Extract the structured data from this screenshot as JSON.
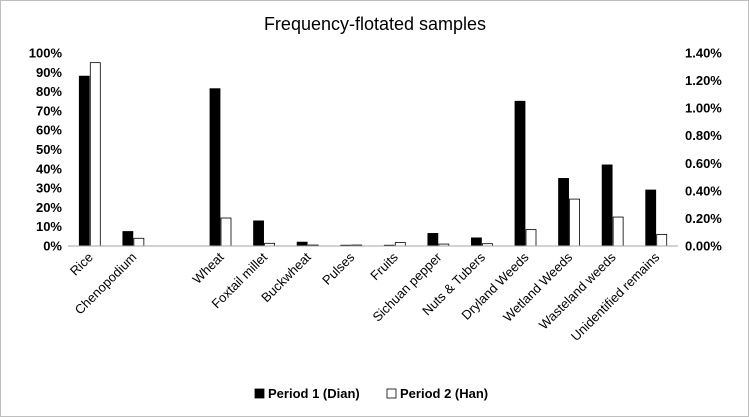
{
  "chart_data": {
    "type": "bar",
    "title": "Frequency-flotated samples",
    "xlabel": "",
    "ylabel": "",
    "categories": [
      "Rice",
      "Chenopodium",
      "",
      "Wheat",
      "Foxtail millet",
      "Buckwheat",
      "Pulses",
      "Fruits",
      "Sichuan pepper",
      "Nuts & Tubers",
      "Dryland Weeds",
      "Wetland Weeds",
      "Wasteland weeds",
      "Unidentified remains"
    ],
    "series": [
      {
        "name": "Period 1 (Dian)",
        "values": [
          88,
          7.5,
          null,
          81.5,
          13,
          2,
          0,
          0,
          6.5,
          4.2,
          75,
          35,
          42,
          29
        ],
        "color": "#000000"
      },
      {
        "name": "Period 2 (Han)",
        "values": [
          95,
          4,
          null,
          14.5,
          1.4,
          0.5,
          0.5,
          1.8,
          1,
          1.2,
          8.5,
          24.3,
          15,
          6
        ],
        "color": "#ffffff"
      }
    ],
    "ylim": [
      0,
      100
    ],
    "y_ticks": [
      "0%",
      "10%",
      "20%",
      "30%",
      "40%",
      "50%",
      "60%",
      "70%",
      "80%",
      "90%",
      "100%"
    ],
    "y2lim": [
      0,
      1.4
    ],
    "y2_ticks": [
      "0.00%",
      "0.20%",
      "0.40%",
      "0.60%",
      "0.80%",
      "1.00%",
      "1.20%",
      "1.40%"
    ],
    "grid": false,
    "legend": "bottom"
  }
}
